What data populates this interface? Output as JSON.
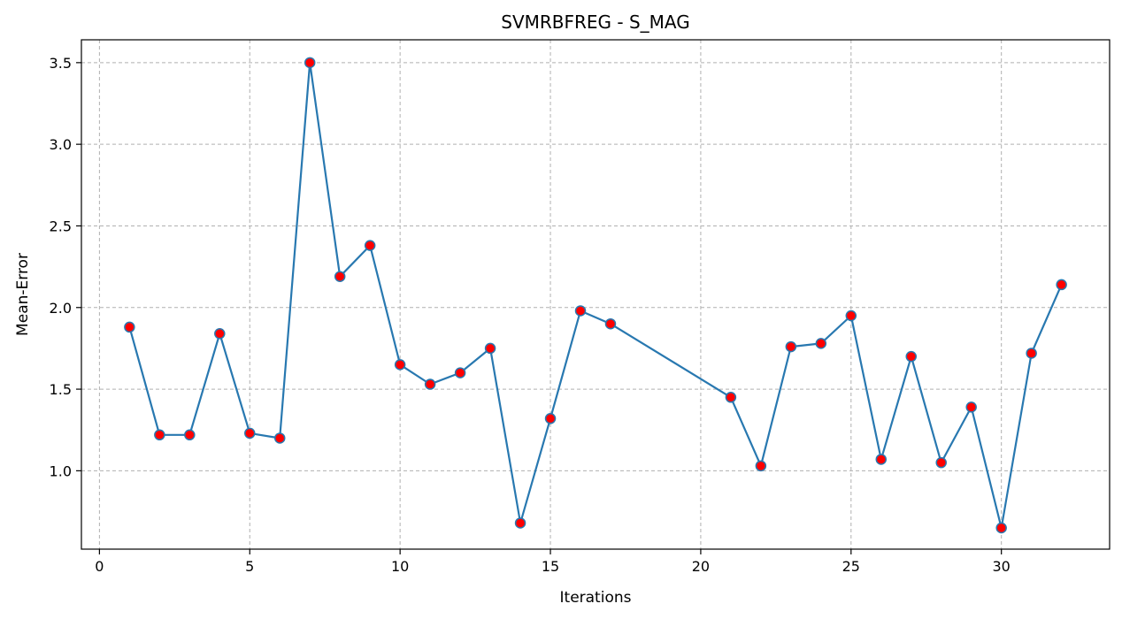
{
  "chart_data": {
    "type": "line",
    "title": "SVMRBFREG - S_MAG",
    "xlabel": "Iterations",
    "ylabel": "Mean-Error",
    "xlim": [
      -0.6,
      33.6
    ],
    "ylim": [
      0.52,
      3.64
    ],
    "x_ticks": [
      0,
      5,
      10,
      15,
      20,
      25,
      30
    ],
    "y_ticks": [
      1.0,
      1.5,
      2.0,
      2.5,
      3.0,
      3.5
    ],
    "x_tick_labels": [
      "0",
      "5",
      "10",
      "15",
      "20",
      "25",
      "30"
    ],
    "y_tick_labels": [
      "1.0",
      "1.5",
      "2.0",
      "2.5",
      "3.0",
      "3.5"
    ],
    "grid": true,
    "legend": "none",
    "colors": {
      "line": "#2878b0",
      "marker_fill": "#ff0000",
      "marker_edge": "#2878b0",
      "grid": "#b0b0b0"
    },
    "series": [
      {
        "x": [
          1,
          2,
          3,
          4,
          5,
          6,
          7,
          8,
          9,
          10,
          11,
          12,
          13,
          14,
          15,
          16,
          17,
          21,
          22,
          23,
          24,
          25,
          26,
          27,
          28,
          29,
          30,
          31,
          32
        ],
        "y": [
          1.88,
          1.22,
          1.22,
          1.84,
          1.23,
          1.2,
          3.5,
          2.19,
          2.38,
          1.65,
          1.53,
          1.6,
          1.75,
          0.68,
          1.32,
          1.98,
          1.9,
          1.45,
          1.03,
          1.76,
          1.78,
          1.95,
          1.07,
          1.7,
          1.05,
          1.39,
          0.65,
          1.72,
          2.14
        ]
      }
    ]
  }
}
